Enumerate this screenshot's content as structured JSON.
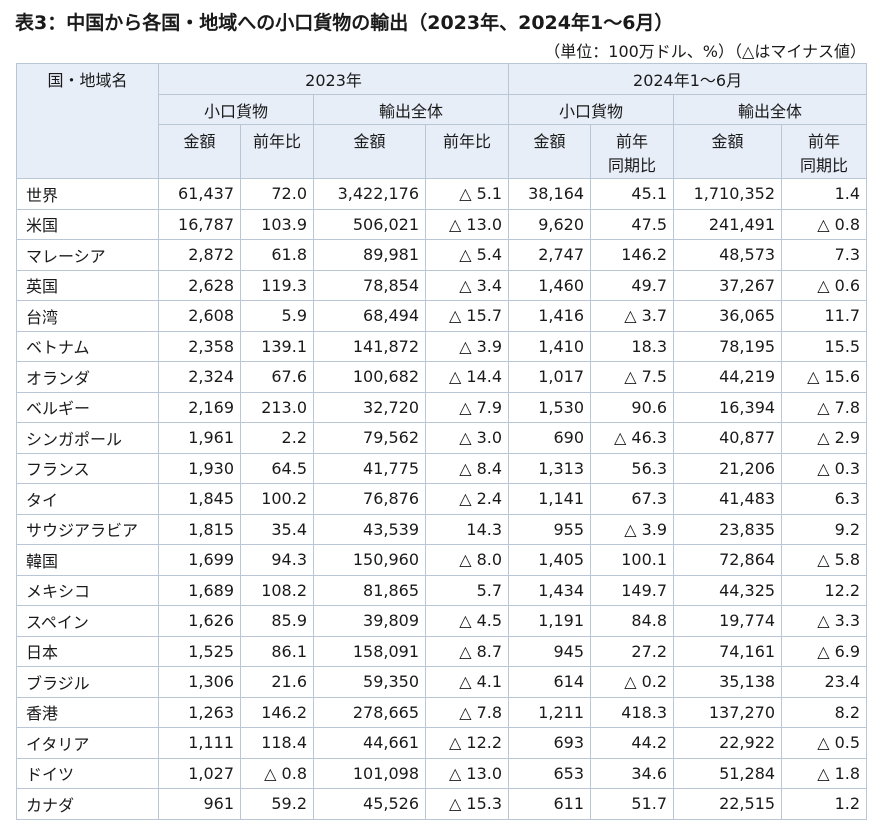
{
  "title": "表3：中国から各国・地域への小口貨物の輸出（2023年、2024年1～6月）",
  "unit_note": "（単位：100万ドル、%）（△はマイナス値）",
  "header": {
    "country": "国・地域名",
    "period_2023": "2023年",
    "period_2024": "2024年1～6月",
    "small_parcel": "小口貨物",
    "total_exports": "輸出全体",
    "amount": "金額",
    "yoy": "前年比",
    "yoy_period_line1": "前年",
    "yoy_period_line2": "同期比"
  },
  "rows": [
    {
      "name": "世界",
      "v": [
        "61,437",
        "72.0",
        "3,422,176",
        "△ 5.1",
        "38,164",
        "45.1",
        "1,710,352",
        "1.4"
      ]
    },
    {
      "name": "米国",
      "v": [
        "16,787",
        "103.9",
        "506,021",
        "△ 13.0",
        "9,620",
        "47.5",
        "241,491",
        "△ 0.8"
      ]
    },
    {
      "name": "マレーシア",
      "v": [
        "2,872",
        "61.8",
        "89,981",
        "△ 5.4",
        "2,747",
        "146.2",
        "48,573",
        "7.3"
      ]
    },
    {
      "name": "英国",
      "v": [
        "2,628",
        "119.3",
        "78,854",
        "△ 3.4",
        "1,460",
        "49.7",
        "37,267",
        "△ 0.6"
      ]
    },
    {
      "name": "台湾",
      "v": [
        "2,608",
        "5.9",
        "68,494",
        "△ 15.7",
        "1,416",
        "△ 3.7",
        "36,065",
        "11.7"
      ]
    },
    {
      "name": "ベトナム",
      "v": [
        "2,358",
        "139.1",
        "141,872",
        "△ 3.9",
        "1,410",
        "18.3",
        "78,195",
        "15.5"
      ]
    },
    {
      "name": "オランダ",
      "v": [
        "2,324",
        "67.6",
        "100,682",
        "△ 14.4",
        "1,017",
        "△ 7.5",
        "44,219",
        "△ 15.6"
      ]
    },
    {
      "name": "ベルギー",
      "v": [
        "2,169",
        "213.0",
        "32,720",
        "△ 7.9",
        "1,530",
        "90.6",
        "16,394",
        "△ 7.8"
      ]
    },
    {
      "name": "シンガポール",
      "v": [
        "1,961",
        "2.2",
        "79,562",
        "△ 3.0",
        "690",
        "△ 46.3",
        "40,877",
        "△ 2.9"
      ]
    },
    {
      "name": "フランス",
      "v": [
        "1,930",
        "64.5",
        "41,775",
        "△ 8.4",
        "1,313",
        "56.3",
        "21,206",
        "△ 0.3"
      ]
    },
    {
      "name": "タイ",
      "v": [
        "1,845",
        "100.2",
        "76,876",
        "△ 2.4",
        "1,141",
        "67.3",
        "41,483",
        "6.3"
      ]
    },
    {
      "name": "サウジアラビア",
      "v": [
        "1,815",
        "35.4",
        "43,539",
        "14.3",
        "955",
        "△ 3.9",
        "23,835",
        "9.2"
      ]
    },
    {
      "name": "韓国",
      "v": [
        "1,699",
        "94.3",
        "150,960",
        "△ 8.0",
        "1,405",
        "100.1",
        "72,864",
        "△ 5.8"
      ]
    },
    {
      "name": "メキシコ",
      "v": [
        "1,689",
        "108.2",
        "81,865",
        "5.7",
        "1,434",
        "149.7",
        "44,325",
        "12.2"
      ]
    },
    {
      "name": "スペイン",
      "v": [
        "1,626",
        "85.9",
        "39,809",
        "△ 4.5",
        "1,191",
        "84.8",
        "19,774",
        "△ 3.3"
      ]
    },
    {
      "name": "日本",
      "v": [
        "1,525",
        "86.1",
        "158,091",
        "△ 8.7",
        "945",
        "27.2",
        "74,161",
        "△ 6.9"
      ]
    },
    {
      "name": "ブラジル",
      "v": [
        "1,306",
        "21.6",
        "59,350",
        "△ 4.1",
        "614",
        "△ 0.2",
        "35,138",
        "23.4"
      ]
    },
    {
      "name": "香港",
      "v": [
        "1,263",
        "146.2",
        "278,665",
        "△ 7.8",
        "1,211",
        "418.3",
        "137,270",
        "8.2"
      ]
    },
    {
      "name": "イタリア",
      "v": [
        "1,111",
        "118.4",
        "44,661",
        "△ 12.2",
        "693",
        "44.2",
        "22,922",
        "△ 0.5"
      ]
    },
    {
      "name": "ドイツ",
      "v": [
        "1,027",
        "△ 0.8",
        "101,098",
        "△ 13.0",
        "653",
        "34.6",
        "51,284",
        "△ 1.8"
      ]
    },
    {
      "name": "カナダ",
      "v": [
        "961",
        "59.2",
        "45,526",
        "△ 15.3",
        "611",
        "51.7",
        "22,515",
        "1.2"
      ]
    }
  ]
}
